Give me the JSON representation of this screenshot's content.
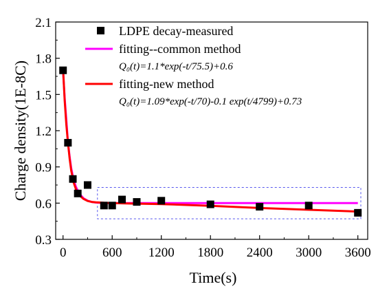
{
  "chart_data": {
    "type": "scatter",
    "xlabel": "Time(s)",
    "ylabel": "Charge density(1E-8C)",
    "xlim": [
      -90,
      3720
    ],
    "ylim": [
      0.3,
      2.1
    ],
    "xticks": [
      0,
      600,
      1200,
      1800,
      2400,
      3000,
      3600
    ],
    "xtick_labels": [
      "0",
      "600",
      "1200",
      "1800",
      "2400",
      "3000",
      "3600"
    ],
    "yticks": [
      0.3,
      0.6,
      0.9,
      1.2,
      1.5,
      1.8,
      2.1
    ],
    "ytick_labels": [
      "0.3",
      "0.6",
      "0.9",
      "1.2",
      "1.5",
      "1.8",
      "2.1"
    ],
    "grid": false,
    "legend_position": "top-right",
    "series": [
      {
        "name": "LDPE decay-measured",
        "kind": "scatter",
        "marker": "square",
        "color": "#000000",
        "x": [
          0,
          60,
          120,
          180,
          300,
          500,
          600,
          720,
          900,
          1200,
          1800,
          2400,
          3000,
          3600
        ],
        "y": [
          1.7,
          1.1,
          0.8,
          0.68,
          0.75,
          0.58,
          0.58,
          0.63,
          0.61,
          0.62,
          0.59,
          0.57,
          0.58,
          0.52
        ]
      },
      {
        "name": "fitting--common method",
        "kind": "line",
        "color": "#ff00ff",
        "formula_label": "Q₀(t)=1.1*exp(-t/75.5)+0.6",
        "x": [
          0,
          20,
          40,
          60,
          80,
          100,
          130,
          160,
          200,
          250,
          300,
          350,
          400,
          500,
          600,
          800,
          1200,
          1800,
          2400,
          3000,
          3600
        ],
        "y": [
          1.7,
          1.47,
          1.29,
          1.1,
          0.985,
          0.89,
          0.79,
          0.73,
          0.678,
          0.64,
          0.62,
          0.61,
          0.605,
          0.601,
          0.6,
          0.6,
          0.6,
          0.6,
          0.6,
          0.6,
          0.6
        ]
      },
      {
        "name": "fitting-new method",
        "kind": "line",
        "color": "#ff0000",
        "formula_label": "Q₀(t)=1.09*exp(-t/70)-0.1 exp(t/4799)+0.73",
        "x": [
          0,
          20,
          40,
          60,
          80,
          100,
          130,
          160,
          200,
          250,
          300,
          350,
          400,
          500,
          600,
          800,
          1200,
          1800,
          2400,
          3000,
          3600
        ],
        "y": [
          1.72,
          1.45,
          1.25,
          1.1,
          0.97,
          0.87,
          0.77,
          0.71,
          0.665,
          0.635,
          0.618,
          0.61,
          0.607,
          0.603,
          0.601,
          0.597,
          0.592,
          0.578,
          0.56,
          0.545,
          0.53
        ]
      }
    ],
    "annotations": [
      {
        "type": "dashed-rectangle",
        "color": "#5555ee",
        "x_range": [
          420,
          3720
        ],
        "y_range": [
          0.47,
          0.73
        ]
      }
    ]
  }
}
